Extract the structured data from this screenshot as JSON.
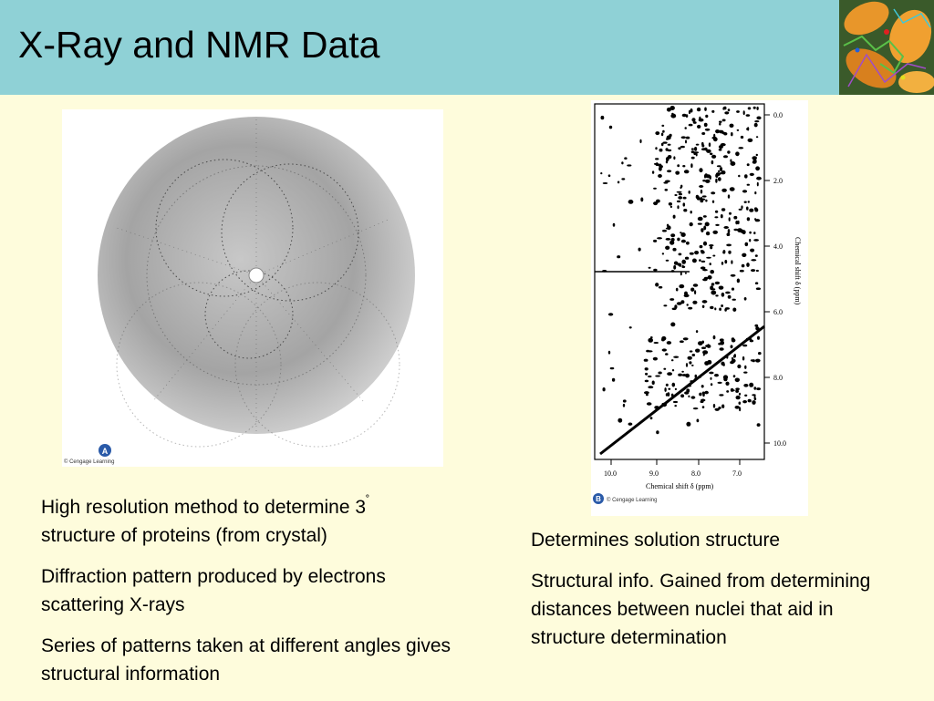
{
  "slide": {
    "title": "X-Ray and NMR Data",
    "colors": {
      "header": "#8fd1d6",
      "background": "#fefcdc"
    }
  },
  "left_text": {
    "p1_main": "High resolution method to determine 3",
    "p1_sup": "˚",
    "p1_line2": "structure of proteins (from crystal)",
    "p2": "Diffraction pattern produced by electrons scattering X-rays",
    "p3": "Series of patterns taken at different angles gives structural information"
  },
  "right_text": {
    "p1": "Determines solution structure",
    "p2": "Structural info. Gained from determining distances between nuclei that aid in structure determination"
  },
  "xray_figure": {
    "badge": "A",
    "credit": "© Cengage Learning"
  },
  "nmr_figure": {
    "badge": "B",
    "credit": "© Cengage Learning",
    "x_axis_label": "Chemical shift δ (ppm)",
    "y_axis_label": "Chemical shift δ (ppm)",
    "x_ticks": [
      "10.0",
      "9.0",
      "8.0",
      "7.0"
    ],
    "y_ticks": [
      "0.0",
      "2.0",
      "4.0",
      "6.0",
      "8.0",
      "10.0"
    ]
  }
}
